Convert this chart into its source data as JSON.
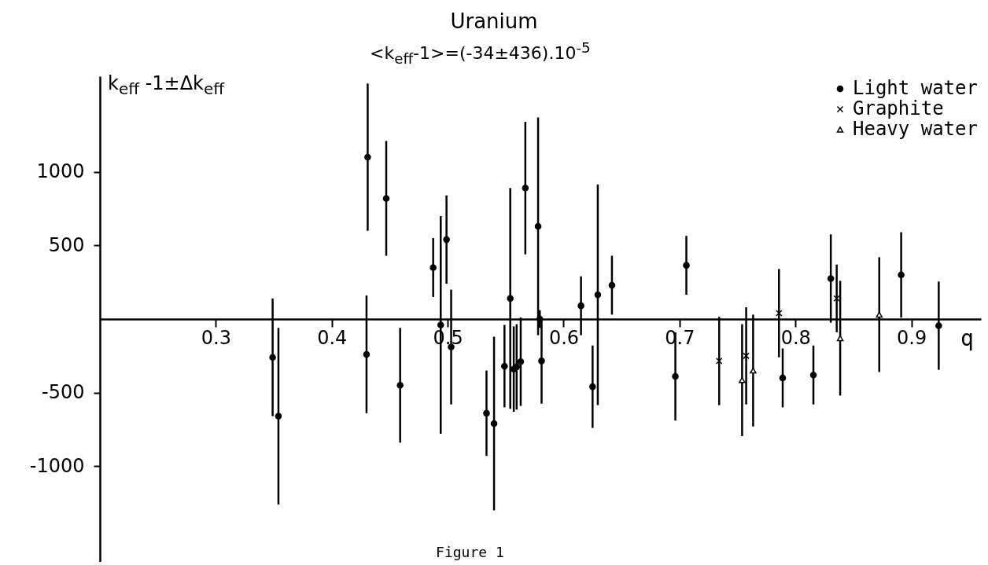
{
  "chart_data": {
    "type": "scatter",
    "title": "Uranium",
    "subtitle": "<k$_{eff}$-1>=(-34±436).10$^{-5}$",
    "xlabel": "q",
    "ylabel": "k$_{eff}$ -1±Δk$_{eff}$",
    "annotations": [
      "Figure 1"
    ],
    "xlim": [
      0.2,
      0.96
    ],
    "ylim": [
      -1650,
      1650
    ],
    "xticks": [
      0.3,
      0.4,
      0.5,
      0.6,
      0.7,
      0.8,
      0.9
    ],
    "yticks": [
      -1000,
      -500,
      500,
      1000
    ],
    "grid": false,
    "legend": "top right",
    "series": [
      {
        "name": "Light water",
        "color": "#000000",
        "marker": "circle",
        "x": [
          0.349,
          0.354,
          0.43,
          0.431,
          0.447,
          0.459,
          0.4875,
          0.494,
          0.499,
          0.503,
          0.5335,
          0.54,
          0.549,
          0.554,
          0.557,
          0.5595,
          0.563,
          0.567,
          0.578,
          0.5795,
          0.581,
          0.615,
          0.625,
          0.6295,
          0.6417,
          0.6964,
          0.7059,
          0.789,
          0.8155,
          0.8305,
          0.8912,
          0.9236
        ],
        "values": [
          -260,
          -660,
          -240,
          1100,
          820,
          -450,
          350,
          -40,
          540,
          -190,
          -640,
          -710,
          -320,
          140,
          -340,
          -325,
          -290,
          890,
          630,
          0,
          -285,
          90,
          -460,
          165,
          230,
          -390,
          365,
          -400,
          -380,
          275,
          300,
          -45
        ],
        "errors": [
          400,
          600,
          400,
          500,
          390,
          390,
          200,
          740,
          300,
          390,
          290,
          590,
          280,
          750,
          290,
          290,
          300,
          450,
          740,
          60,
          290,
          200,
          280,
          750,
          200,
          300,
          200,
          200,
          200,
          300,
          290,
          300
        ]
      },
      {
        "name": "Graphite",
        "color": "#000000",
        "marker": "cross",
        "x": [
          0.7342,
          0.7575,
          0.7858,
          0.8356
        ],
        "values": [
          -285,
          -250,
          40,
          140
        ],
        "errors": [
          300,
          330,
          300,
          230
        ]
      },
      {
        "name": "Heavy water",
        "color": "#000000",
        "marker": "triangle",
        "x": [
          0.754,
          0.7635,
          0.8386,
          0.8723
        ],
        "values": [
          -415,
          -350,
          -130,
          30
        ],
        "errors": [
          380,
          380,
          390,
          390
        ]
      }
    ]
  }
}
